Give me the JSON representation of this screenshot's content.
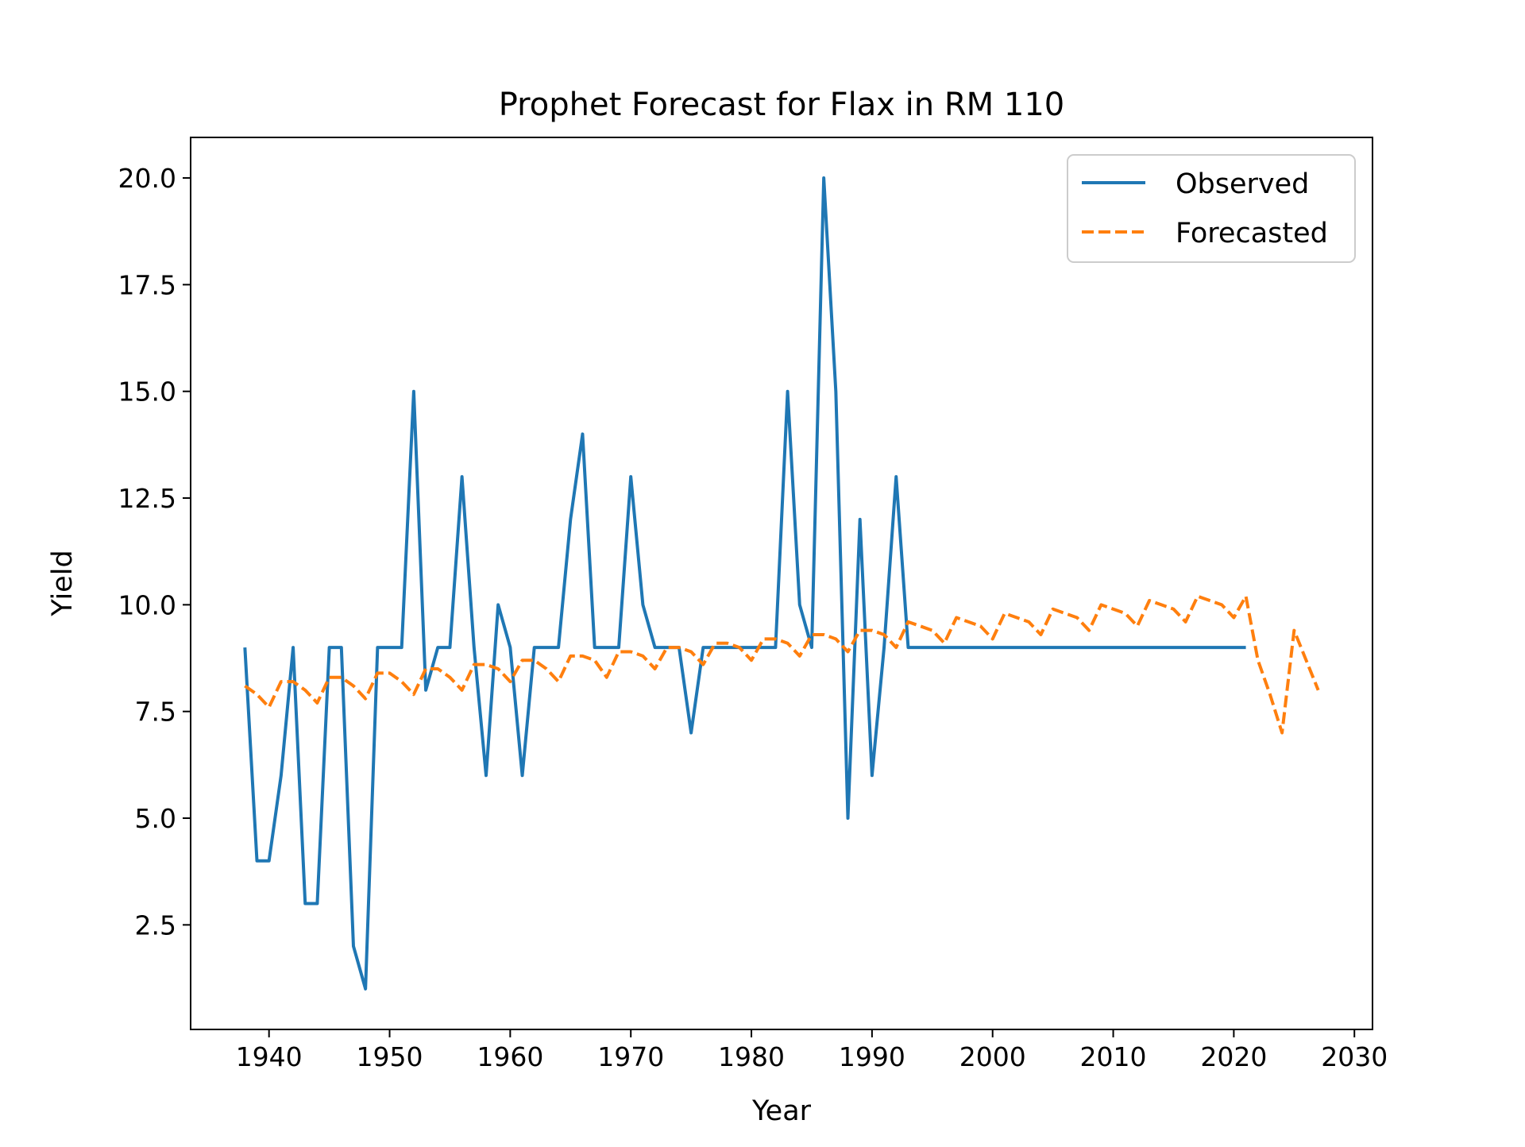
{
  "chart_data": {
    "type": "line",
    "title": "Prophet Forecast for Flax in RM 110",
    "xlabel": "Year",
    "ylabel": "Yield",
    "xlim": [
      1933.5,
      2031.5
    ],
    "ylim": [
      0.05,
      20.95
    ],
    "xticks": [
      1940,
      1950,
      1960,
      1970,
      1980,
      1990,
      2000,
      2010,
      2020,
      2030
    ],
    "xtick_labels": [
      "1940",
      "1950",
      "1960",
      "1970",
      "1980",
      "1990",
      "2000",
      "2010",
      "2020",
      "2030"
    ],
    "yticks": [
      2.5,
      5.0,
      7.5,
      10.0,
      12.5,
      15.0,
      17.5,
      20.0
    ],
    "ytick_labels": [
      "2.5",
      "5.0",
      "7.5",
      "10.0",
      "12.5",
      "15.0",
      "17.5",
      "20.0"
    ],
    "grid": false,
    "legend_position": "top-right",
    "series": [
      {
        "name": "Observed",
        "color": "#1f77b4",
        "style": "solid",
        "x": [
          1938,
          1939,
          1940,
          1941,
          1942,
          1943,
          1944,
          1945,
          1946,
          1947,
          1948,
          1949,
          1950,
          1951,
          1952,
          1953,
          1954,
          1955,
          1956,
          1957,
          1958,
          1959,
          1960,
          1961,
          1962,
          1963,
          1964,
          1965,
          1966,
          1967,
          1968,
          1969,
          1970,
          1971,
          1972,
          1973,
          1974,
          1975,
          1976,
          1977,
          1978,
          1979,
          1980,
          1981,
          1982,
          1983,
          1984,
          1985,
          1986,
          1987,
          1988,
          1989,
          1990,
          1991,
          1992,
          1993,
          1994,
          1995,
          1996,
          1997,
          1998,
          1999,
          2000,
          2001,
          2002,
          2003,
          2004,
          2005,
          2006,
          2007,
          2008,
          2009,
          2010,
          2011,
          2012,
          2013,
          2014,
          2015,
          2016,
          2017,
          2018,
          2019,
          2020,
          2021
        ],
        "values": [
          9,
          4,
          4,
          6,
          9,
          3,
          3,
          9,
          9,
          2,
          1,
          9,
          9,
          9,
          15,
          8,
          9,
          9,
          13,
          9,
          6,
          10,
          9,
          6,
          9,
          9,
          9,
          12,
          14,
          9,
          9,
          9,
          13,
          10,
          9,
          9,
          9,
          7,
          9,
          9,
          9,
          9,
          9,
          9,
          9,
          15,
          10,
          9,
          20,
          15,
          5,
          12,
          6,
          9,
          13,
          9,
          9,
          9,
          9,
          9,
          9,
          9,
          9,
          9,
          9,
          9,
          9,
          9,
          9,
          9,
          9,
          9,
          9,
          9,
          9,
          9,
          9,
          9,
          9,
          9,
          9,
          9,
          9,
          9
        ]
      },
      {
        "name": "Forecasted",
        "color": "#ff7f0e",
        "style": "dashed",
        "x": [
          1938,
          1939,
          1940,
          1941,
          1942,
          1943,
          1944,
          1945,
          1946,
          1947,
          1948,
          1949,
          1950,
          1951,
          1952,
          1953,
          1954,
          1955,
          1956,
          1957,
          1958,
          1959,
          1960,
          1961,
          1962,
          1963,
          1964,
          1965,
          1966,
          1967,
          1968,
          1969,
          1970,
          1971,
          1972,
          1973,
          1974,
          1975,
          1976,
          1977,
          1978,
          1979,
          1980,
          1981,
          1982,
          1983,
          1984,
          1985,
          1986,
          1987,
          1988,
          1989,
          1990,
          1991,
          1992,
          1993,
          1994,
          1995,
          1996,
          1997,
          1998,
          1999,
          2000,
          2001,
          2002,
          2003,
          2004,
          2005,
          2006,
          2007,
          2008,
          2009,
          2010,
          2011,
          2012,
          2013,
          2014,
          2015,
          2016,
          2017,
          2018,
          2019,
          2020,
          2021,
          2022,
          2023,
          2024,
          2025,
          2026,
          2027
        ],
        "values": [
          8.1,
          7.9,
          7.6,
          8.2,
          8.2,
          8.0,
          7.7,
          8.3,
          8.3,
          8.1,
          7.8,
          8.4,
          8.4,
          8.2,
          7.9,
          8.5,
          8.5,
          8.3,
          8.0,
          8.6,
          8.6,
          8.5,
          8.2,
          8.7,
          8.7,
          8.5,
          8.2,
          8.8,
          8.8,
          8.7,
          8.3,
          8.9,
          8.9,
          8.8,
          8.5,
          9.0,
          9.0,
          8.9,
          8.6,
          9.1,
          9.1,
          9.0,
          8.7,
          9.2,
          9.2,
          9.1,
          8.8,
          9.3,
          9.3,
          9.2,
          8.9,
          9.4,
          9.4,
          9.3,
          9.0,
          9.6,
          9.5,
          9.4,
          9.1,
          9.7,
          9.6,
          9.5,
          9.2,
          9.8,
          9.7,
          9.6,
          9.3,
          9.9,
          9.8,
          9.7,
          9.4,
          10.0,
          9.9,
          9.8,
          9.5,
          10.1,
          10.0,
          9.9,
          9.6,
          10.2,
          10.1,
          10.0,
          9.7,
          10.2,
          8.7,
          7.9,
          7.0,
          9.4,
          8.7,
          8.0
        ]
      }
    ]
  }
}
